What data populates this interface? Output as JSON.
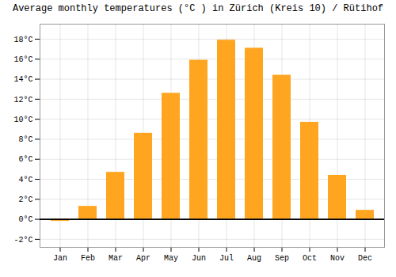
{
  "chart_data": {
    "type": "bar",
    "title": "Average monthly temperatures (°C ) in Zürich (Kreis 10) / Rütihof",
    "categories": [
      "Jan",
      "Feb",
      "Mar",
      "Apr",
      "May",
      "Jun",
      "Jul",
      "Aug",
      "Sep",
      "Oct",
      "Nov",
      "Dec"
    ],
    "values": [
      -0.2,
      1.3,
      4.7,
      8.6,
      12.6,
      15.9,
      17.9,
      17.1,
      14.4,
      9.7,
      4.4,
      0.9
    ],
    "color": "#FFA520",
    "ylim": [
      -2.8,
      19.5
    ],
    "yticks": [
      {
        "value": -2,
        "label": "-2°C"
      },
      {
        "value": 0,
        "label": "0°C"
      },
      {
        "value": 2,
        "label": "2°C"
      },
      {
        "value": 4,
        "label": "4°C"
      },
      {
        "value": 6,
        "label": "6°C"
      },
      {
        "value": 8,
        "label": "8°C"
      },
      {
        "value": 10,
        "label": "10°C"
      },
      {
        "value": 12,
        "label": "12°C"
      },
      {
        "value": 14,
        "label": "14°C"
      },
      {
        "value": 16,
        "label": "16°C"
      },
      {
        "value": 18,
        "label": "18°C"
      }
    ],
    "grid": true
  }
}
